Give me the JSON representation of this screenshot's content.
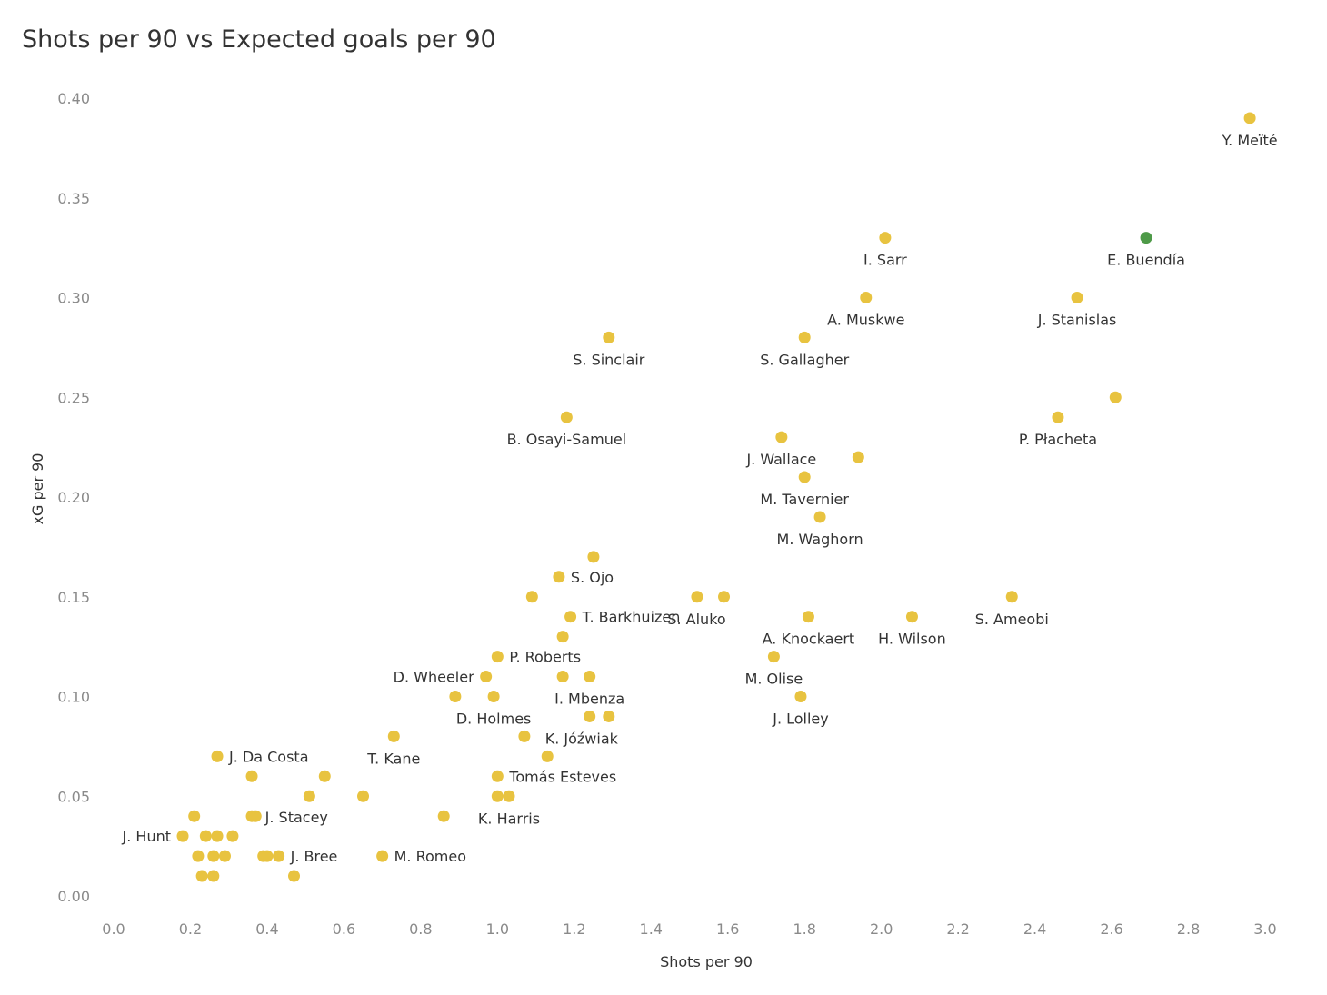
{
  "chart_data": {
    "type": "scatter",
    "title": "Shots per 90 vs Expected goals per 90",
    "xlabel": "Shots per 90",
    "ylabel": "xG per 90",
    "xlim": [
      0.0,
      3.0
    ],
    "ylim": [
      0.0,
      0.4
    ],
    "x_ticks": [
      "0.0",
      "0.2",
      "0.4",
      "0.6",
      "0.8",
      "1.0",
      "1.2",
      "1.4",
      "1.6",
      "1.8",
      "2.0",
      "2.2",
      "2.4",
      "2.6",
      "2.8",
      "3.0"
    ],
    "y_ticks": [
      "0.00",
      "0.05",
      "0.10",
      "0.15",
      "0.20",
      "0.25",
      "0.30",
      "0.35",
      "0.40"
    ],
    "grid": false,
    "colors": {
      "default": "#e8c340",
      "highlight": "#4e9a48"
    },
    "points": [
      {
        "x": 2.96,
        "y": 0.39,
        "label": "Y. Meïté",
        "lp": "below"
      },
      {
        "x": 2.01,
        "y": 0.33,
        "label": "I. Sarr",
        "lp": "below"
      },
      {
        "x": 2.69,
        "y": 0.33,
        "label": "E. Buendía",
        "lp": "below",
        "highlight": true
      },
      {
        "x": 1.96,
        "y": 0.3,
        "label": "A. Muskwe",
        "lp": "below"
      },
      {
        "x": 2.51,
        "y": 0.3,
        "label": "J. Stanislas",
        "lp": "below"
      },
      {
        "x": 1.29,
        "y": 0.28,
        "label": "S. Sinclair",
        "lp": "below"
      },
      {
        "x": 1.8,
        "y": 0.28,
        "label": "S. Gallagher",
        "lp": "below"
      },
      {
        "x": 2.61,
        "y": 0.25
      },
      {
        "x": 1.18,
        "y": 0.24,
        "label": "B. Osayi-Samuel",
        "lp": "below"
      },
      {
        "x": 2.46,
        "y": 0.24,
        "label": "P. Płacheta",
        "lp": "below"
      },
      {
        "x": 1.74,
        "y": 0.23,
        "label": "J. Wallace",
        "lp": "below"
      },
      {
        "x": 1.94,
        "y": 0.22
      },
      {
        "x": 1.8,
        "y": 0.21,
        "label": "M. Tavernier",
        "lp": "below"
      },
      {
        "x": 1.84,
        "y": 0.19,
        "label": "M. Waghorn",
        "lp": "below"
      },
      {
        "x": 1.25,
        "y": 0.17
      },
      {
        "x": 1.16,
        "y": 0.16,
        "label": "S. Ojo",
        "lp": "right"
      },
      {
        "x": 1.09,
        "y": 0.15
      },
      {
        "x": 1.52,
        "y": 0.15
      },
      {
        "x": 1.59,
        "y": 0.15,
        "label": "S. Aluko",
        "lp": "below-left"
      },
      {
        "x": 2.34,
        "y": 0.15,
        "label": "S. Ameobi",
        "lp": "below"
      },
      {
        "x": 1.19,
        "y": 0.14,
        "label": "T. Barkhuizen",
        "lp": "right"
      },
      {
        "x": 1.81,
        "y": 0.14,
        "label": "A. Knockaert",
        "lp": "below"
      },
      {
        "x": 2.08,
        "y": 0.14,
        "label": "H. Wilson",
        "lp": "below"
      },
      {
        "x": 1.17,
        "y": 0.13
      },
      {
        "x": 1.0,
        "y": 0.12,
        "label": "P. Roberts",
        "lp": "right"
      },
      {
        "x": 1.72,
        "y": 0.12,
        "label": "M. Olise",
        "lp": "below"
      },
      {
        "x": 0.97,
        "y": 0.11,
        "label": "D. Wheeler",
        "lp": "left"
      },
      {
        "x": 1.17,
        "y": 0.11
      },
      {
        "x": 1.24,
        "y": 0.11,
        "label": "I. Mbenza",
        "lp": "below"
      },
      {
        "x": 0.89,
        "y": 0.1
      },
      {
        "x": 0.99,
        "y": 0.1,
        "label": "D. Holmes",
        "lp": "below"
      },
      {
        "x": 1.79,
        "y": 0.1,
        "label": "J. Lolley",
        "lp": "below"
      },
      {
        "x": 1.24,
        "y": 0.09
      },
      {
        "x": 1.29,
        "y": 0.09,
        "label": "K. Jóźwiak",
        "lp": "below-left"
      },
      {
        "x": 0.73,
        "y": 0.08,
        "label": "T. Kane",
        "lp": "below"
      },
      {
        "x": 1.07,
        "y": 0.08
      },
      {
        "x": 1.13,
        "y": 0.07
      },
      {
        "x": 0.27,
        "y": 0.07,
        "label": "J. Da Costa",
        "lp": "right"
      },
      {
        "x": 0.36,
        "y": 0.06
      },
      {
        "x": 0.55,
        "y": 0.06
      },
      {
        "x": 1.0,
        "y": 0.06,
        "label": "Tomás Esteves",
        "lp": "right"
      },
      {
        "x": 0.51,
        "y": 0.05
      },
      {
        "x": 0.65,
        "y": 0.05
      },
      {
        "x": 1.0,
        "y": 0.05
      },
      {
        "x": 1.03,
        "y": 0.05,
        "label": "K. Harris",
        "lp": "below"
      },
      {
        "x": 0.21,
        "y": 0.04
      },
      {
        "x": 0.36,
        "y": 0.04
      },
      {
        "x": 0.37,
        "y": 0.04,
        "label": "J. Stacey",
        "lp": "below-right"
      },
      {
        "x": 0.86,
        "y": 0.04
      },
      {
        "x": 0.18,
        "y": 0.03,
        "label": "J. Hunt",
        "lp": "left"
      },
      {
        "x": 0.24,
        "y": 0.03
      },
      {
        "x": 0.27,
        "y": 0.03
      },
      {
        "x": 0.31,
        "y": 0.03
      },
      {
        "x": 0.22,
        "y": 0.02
      },
      {
        "x": 0.26,
        "y": 0.02
      },
      {
        "x": 0.29,
        "y": 0.02
      },
      {
        "x": 0.39,
        "y": 0.02
      },
      {
        "x": 0.4,
        "y": 0.02
      },
      {
        "x": 0.43,
        "y": 0.02,
        "label": "J. Bree",
        "lp": "right"
      },
      {
        "x": 0.7,
        "y": 0.02,
        "label": "M. Romeo",
        "lp": "right"
      },
      {
        "x": 0.23,
        "y": 0.01
      },
      {
        "x": 0.26,
        "y": 0.01
      },
      {
        "x": 0.47,
        "y": 0.01
      }
    ]
  }
}
